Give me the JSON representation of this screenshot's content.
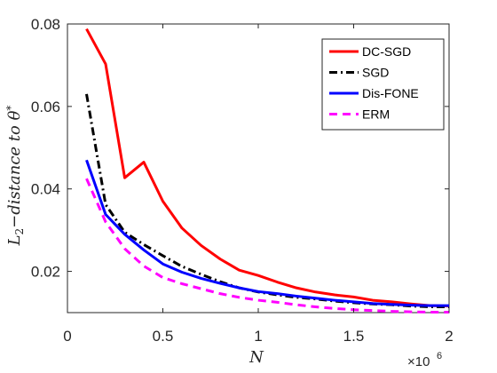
{
  "chart_data": {
    "type": "line",
    "xlabel": "N",
    "ylabel": "L_2−distance to θ*",
    "ylabel_parts": {
      "L": "L",
      "sub": "2",
      "mid": "−distance to ",
      "theta": "θ",
      "star": "*"
    },
    "xlim": [
      0,
      2000000
    ],
    "ylim": [
      0.01,
      0.08
    ],
    "x_ticks": [
      0,
      500000,
      1000000,
      1500000,
      2000000
    ],
    "x_tick_labels": [
      "0",
      "0.5",
      "1",
      "1.5",
      "2"
    ],
    "x_exponent_label": {
      "base": "×10",
      "exp": "6"
    },
    "y_ticks": [
      0.02,
      0.04,
      0.06,
      0.08
    ],
    "y_tick_labels": [
      "0.02",
      "0.04",
      "0.06",
      "0.08"
    ],
    "grid": false,
    "legend_position": "top-right",
    "x": [
      100000,
      200000,
      300000,
      400000,
      500000,
      600000,
      700000,
      800000,
      900000,
      1000000,
      1100000,
      1200000,
      1300000,
      1400000,
      1500000,
      1600000,
      1700000,
      1800000,
      1900000,
      2000000
    ],
    "series": [
      {
        "name": "DC-SGD",
        "color": "#ff0000",
        "dash": "solid",
        "values": [
          0.0788,
          0.0703,
          0.0427,
          0.0465,
          0.037,
          0.0305,
          0.0263,
          0.023,
          0.0203,
          0.019,
          0.0174,
          0.016,
          0.015,
          0.0143,
          0.0138,
          0.013,
          0.0126,
          0.0121,
          0.0117,
          0.0116
        ]
      },
      {
        "name": "SGD",
        "color": "#000000",
        "dash": "dashdot",
        "values": [
          0.063,
          0.0362,
          0.0295,
          0.0265,
          0.0238,
          0.0212,
          0.0193,
          0.0175,
          0.016,
          0.015,
          0.0143,
          0.0137,
          0.0133,
          0.0128,
          0.0124,
          0.0121,
          0.0119,
          0.0116,
          0.0114,
          0.0114
        ]
      },
      {
        "name": "Dis-FONE",
        "color": "#0000ff",
        "dash": "solid",
        "values": [
          0.047,
          0.0338,
          0.029,
          0.0252,
          0.0218,
          0.0198,
          0.0183,
          0.0171,
          0.016,
          0.0151,
          0.0146,
          0.014,
          0.0135,
          0.013,
          0.0126,
          0.0122,
          0.012,
          0.0118,
          0.0117,
          0.0117
        ]
      },
      {
        "name": "ERM",
        "color": "#ff00ff",
        "dash": "dashed",
        "values": [
          0.0425,
          0.032,
          0.0255,
          0.0213,
          0.0185,
          0.017,
          0.0158,
          0.0146,
          0.0137,
          0.013,
          0.0125,
          0.0119,
          0.0114,
          0.011,
          0.0107,
          0.0105,
          0.0103,
          0.0102,
          0.0101,
          0.0101
        ]
      }
    ]
  }
}
